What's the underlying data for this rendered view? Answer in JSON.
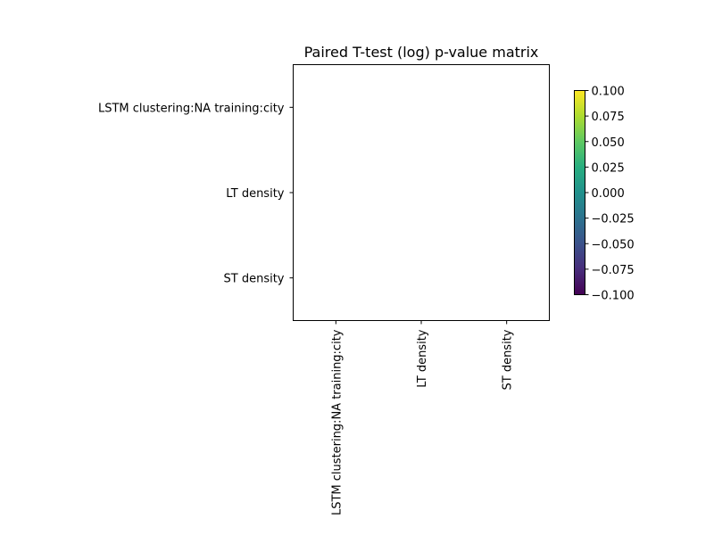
{
  "chart_data": {
    "type": "heatmap",
    "title": "Paired T-test (log) p-value matrix",
    "rows": [
      "LSTM clustering:NA training:city",
      "LT density",
      "ST density"
    ],
    "columns": [
      "LSTM clustering:NA training:city",
      "LT density",
      "ST density"
    ],
    "values": [
      [
        null,
        null,
        null
      ],
      [
        null,
        null,
        null
      ],
      [
        null,
        null,
        null
      ]
    ],
    "colorbar": {
      "colormap": "viridis",
      "range": [
        -0.1,
        0.1
      ],
      "ticks": [
        "0.100",
        "0.075",
        "0.050",
        "0.025",
        "0.000",
        "−0.025",
        "−0.050",
        "−0.075",
        "−0.100"
      ]
    },
    "grid": false
  }
}
